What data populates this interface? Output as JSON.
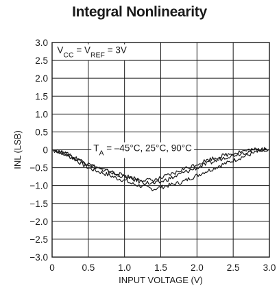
{
  "chart_data": {
    "type": "line",
    "title": "Integral Nonlinearity",
    "xlabel": "INPUT VOLTAGE (V)",
    "ylabel": "INL (LSB)",
    "xlim": [
      0,
      3.0
    ],
    "ylim": [
      -3.0,
      3.0
    ],
    "x_ticks": [
      "0",
      "0.5",
      "1.0",
      "1.5",
      "2.0",
      "2.5",
      "3.0"
    ],
    "y_ticks": [
      "3.0",
      "2.5",
      "2.0",
      "1.5",
      "1.0",
      "0.5",
      "0",
      "−0.5",
      "−1.0",
      "−1.5",
      "−2.0",
      "−2.5",
      "−3.0"
    ],
    "grid": true,
    "line_color": "#1a1a1a",
    "annotations": [
      {
        "text": "V",
        "sub": "CC",
        "text2": " = V",
        "sub2": "REF",
        "text3": " = 3V"
      },
      {
        "text": "T",
        "sub": "A",
        "text2": " = –45°C, 25°C, 90°C",
        "sub2": "",
        "text3": ""
      }
    ],
    "series": [
      {
        "x": [
          0,
          0.1,
          0.2,
          0.3,
          0.4,
          0.5,
          0.6,
          0.7,
          0.8,
          0.9,
          1.0,
          1.1,
          1.2,
          1.3,
          1.4,
          1.5,
          1.6,
          1.7,
          1.8,
          1.9,
          2.0,
          2.1,
          2.2,
          2.3,
          2.4,
          2.5,
          2.6,
          2.7,
          2.8,
          2.9,
          3.0
        ],
        "y": [
          0,
          -0.05,
          -0.15,
          -0.25,
          -0.38,
          -0.5,
          -0.58,
          -0.65,
          -0.72,
          -0.8,
          -0.85,
          -0.95,
          -1.0,
          -1.05,
          -1.1,
          -1.05,
          -1.0,
          -0.95,
          -0.9,
          -0.8,
          -0.72,
          -0.62,
          -0.55,
          -0.45,
          -0.38,
          -0.3,
          -0.22,
          -0.15,
          -0.08,
          -0.03,
          0
        ]
      },
      {
        "x": [
          0,
          0.1,
          0.2,
          0.3,
          0.4,
          0.5,
          0.6,
          0.7,
          0.8,
          0.9,
          1.0,
          1.1,
          1.2,
          1.3,
          1.4,
          1.5,
          1.6,
          1.7,
          1.8,
          1.9,
          2.0,
          2.1,
          2.2,
          2.3,
          2.4,
          2.5,
          2.6,
          2.7,
          2.8,
          2.9,
          3.0
        ],
        "y": [
          0,
          -0.05,
          -0.12,
          -0.2,
          -0.3,
          -0.4,
          -0.48,
          -0.55,
          -0.62,
          -0.7,
          -0.75,
          -0.82,
          -0.88,
          -0.92,
          -0.95,
          -0.9,
          -0.82,
          -0.75,
          -0.65,
          -0.58,
          -0.5,
          -0.42,
          -0.35,
          -0.28,
          -0.2,
          -0.15,
          -0.1,
          -0.05,
          0,
          0.02,
          0
        ]
      },
      {
        "x": [
          0,
          0.1,
          0.2,
          0.3,
          0.4,
          0.5,
          0.6,
          0.7,
          0.8,
          0.9,
          1.0,
          1.1,
          1.2,
          1.3,
          1.4,
          1.5,
          1.6,
          1.7,
          1.8,
          1.9,
          2.0,
          2.1,
          2.2,
          2.3,
          2.4,
          2.5,
          2.6,
          2.7,
          2.8,
          2.9,
          3.0
        ],
        "y": [
          0,
          -0.05,
          -0.12,
          -0.22,
          -0.32,
          -0.42,
          -0.5,
          -0.55,
          -0.6,
          -0.68,
          -0.72,
          -0.78,
          -0.82,
          -0.85,
          -0.85,
          -0.8,
          -0.72,
          -0.65,
          -0.55,
          -0.48,
          -0.4,
          -0.32,
          -0.25,
          -0.2,
          -0.14,
          -0.1,
          -0.05,
          -0.02,
          0,
          0,
          0
        ]
      }
    ]
  }
}
